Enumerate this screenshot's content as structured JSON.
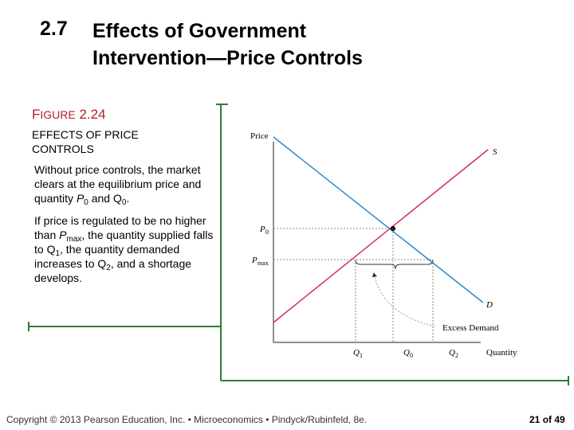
{
  "header": {
    "section_number": "2.7",
    "title_line1": "Effects of Government",
    "title_line2": "Intervention—Price Controls"
  },
  "figure": {
    "label_first": "F",
    "label_small": "IGURE",
    "label_number": "2.24",
    "subtitle_line1": "EFFECTS OF PRICE",
    "subtitle_line2": "CONTROLS"
  },
  "text": {
    "para1_a": "Without price controls, the market clears at the equilibrium price and quantity ",
    "para1_p": "P",
    "para1_p_sub": "0",
    "para1_b": " and Q",
    "para1_q_sub": "0",
    "para1_c": ".",
    "para2_a": "If price is regulated to be no higher than ",
    "para2_p": "P",
    "para2_p_sub": "max",
    "para2_b": ", the quantity supplied falls to Q",
    "para2_q1_sub": "1",
    "para2_c": ", the quantity demanded increases to Q",
    "para2_q2_sub": "2",
    "para2_d": ", and a shortage develops."
  },
  "graph": {
    "y_axis_label": "Price",
    "x_axis_label": "Quantity",
    "supply_label": "S",
    "demand_label": "D",
    "p0_label": "P",
    "p0_sub": "0",
    "pmax_label": "P",
    "pmax_sub": "max",
    "q1_label": "Q",
    "q1_sub": "1",
    "q0_label": "Q",
    "q0_sub": "0",
    "q2_label": "Q",
    "q2_sub": "2",
    "excess_label": "Excess Demand",
    "colors": {
      "supply": "#d42a5e",
      "demand": "#2a8ccc",
      "axis": "#222222",
      "frame": "#2e7d32"
    }
  },
  "footer": {
    "text": "Copyright © 2013 Pearson Education, Inc. • Microeconomics • Pindyck/Rubinfeld, 8e.",
    "page_current": "21",
    "page_of": "of",
    "page_total": "49"
  }
}
